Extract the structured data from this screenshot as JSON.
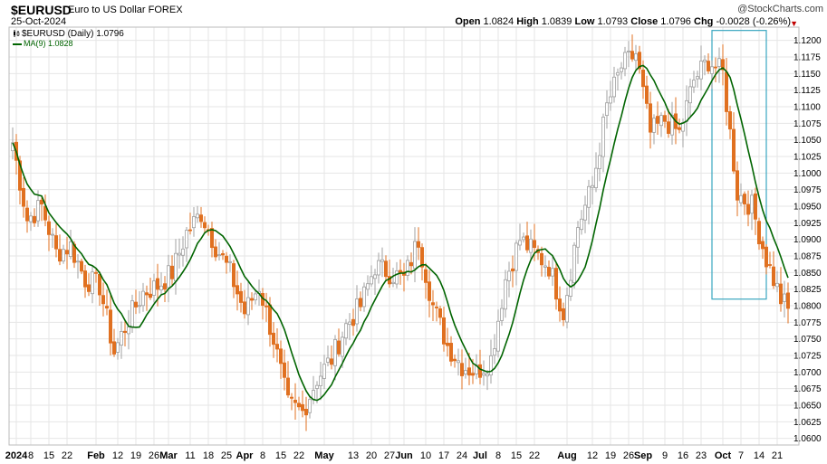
{
  "header": {
    "symbol": "$EURUSD",
    "description": "Euro to US Dollar FOREX",
    "date": "25-Oct-2024",
    "brand": "@StockCharts.com",
    "open_label": "Open",
    "open": "1.0824",
    "high_label": "High",
    "high": "1.0839",
    "low_label": "Low",
    "low": "1.0793",
    "close_label": "Close",
    "close": "1.0796",
    "chg_label": "Chg",
    "chg": "-0.0028 (-0.26%)"
  },
  "legend": {
    "price_label": "$EURUSD (Daily) 1.0796",
    "ma_label": "MA(9) 1.0828"
  },
  "colors": {
    "up": "#a0a0a0",
    "down": "#e07020",
    "ma": "#006400",
    "grid": "#e6e6e6",
    "highlight": "#3aa6c0"
  },
  "chart_data": {
    "type": "candlestick",
    "ylim": [
      1.059,
      1.122
    ],
    "y_ticks": [
      "1.0600",
      "1.0625",
      "1.0650",
      "1.0675",
      "1.0700",
      "1.0725",
      "1.0750",
      "1.0775",
      "1.0800",
      "1.0825",
      "1.0850",
      "1.0875",
      "1.0900",
      "1.0925",
      "1.0950",
      "1.0975",
      "1.1000",
      "1.1025",
      "1.1050",
      "1.1075",
      "1.1100",
      "1.1125",
      "1.1150",
      "1.1175",
      "1.1200"
    ],
    "x_ticks": [
      {
        "label": "2024",
        "bold": true,
        "i": 1
      },
      {
        "label": "8",
        "i": 5
      },
      {
        "label": "15",
        "i": 10
      },
      {
        "label": "22",
        "i": 15
      },
      {
        "label": "Feb",
        "bold": true,
        "i": 23
      },
      {
        "label": "12",
        "i": 29
      },
      {
        "label": "19",
        "i": 34
      },
      {
        "label": "26",
        "i": 39
      },
      {
        "label": "Mar",
        "bold": true,
        "i": 43
      },
      {
        "label": "11",
        "i": 49
      },
      {
        "label": "18",
        "i": 54
      },
      {
        "label": "25",
        "i": 59
      },
      {
        "label": "Apr",
        "bold": true,
        "i": 64
      },
      {
        "label": "8",
        "i": 69
      },
      {
        "label": "15",
        "i": 74
      },
      {
        "label": "22",
        "i": 79
      },
      {
        "label": "May",
        "bold": true,
        "i": 86
      },
      {
        "label": "13",
        "i": 94
      },
      {
        "label": "20",
        "i": 99
      },
      {
        "label": "27",
        "i": 104
      },
      {
        "label": "Jun",
        "bold": true,
        "i": 108
      },
      {
        "label": "10",
        "i": 114
      },
      {
        "label": "17",
        "i": 119
      },
      {
        "label": "24",
        "i": 124
      },
      {
        "label": "Jul",
        "bold": true,
        "i": 129
      },
      {
        "label": "8",
        "i": 134
      },
      {
        "label": "15",
        "i": 139
      },
      {
        "label": "22",
        "i": 144
      },
      {
        "label": "Aug",
        "bold": true,
        "i": 153
      },
      {
        "label": "12",
        "i": 160
      },
      {
        "label": "19",
        "i": 165
      },
      {
        "label": "26",
        "i": 170
      },
      {
        "label": "Sep",
        "bold": true,
        "i": 174
      },
      {
        "label": "9",
        "i": 180
      },
      {
        "label": "16",
        "i": 185
      },
      {
        "label": "23",
        "i": 190
      },
      {
        "label": "Oct",
        "bold": true,
        "i": 196
      },
      {
        "label": "7",
        "i": 201
      },
      {
        "label": "14",
        "i": 206
      },
      {
        "label": "21",
        "i": 211
      }
    ],
    "close_anchors": [
      [
        0,
        1.1046
      ],
      [
        4,
        1.093
      ],
      [
        8,
        1.095
      ],
      [
        12,
        1.088
      ],
      [
        16,
        1.089
      ],
      [
        20,
        1.084
      ],
      [
        24,
        1.083
      ],
      [
        28,
        1.073
      ],
      [
        32,
        1.078
      ],
      [
        36,
        1.082
      ],
      [
        40,
        1.083
      ],
      [
        44,
        1.085
      ],
      [
        48,
        1.091
      ],
      [
        52,
        1.094
      ],
      [
        56,
        1.089
      ],
      [
        60,
        1.085
      ],
      [
        64,
        1.079
      ],
      [
        68,
        1.083
      ],
      [
        72,
        1.075
      ],
      [
        76,
        1.065
      ],
      [
        80,
        1.064
      ],
      [
        84,
        1.069
      ],
      [
        88,
        1.072
      ],
      [
        92,
        1.077
      ],
      [
        96,
        1.08
      ],
      [
        100,
        1.086
      ],
      [
        104,
        1.085
      ],
      [
        108,
        1.084
      ],
      [
        112,
        1.09
      ],
      [
        116,
        1.08
      ],
      [
        120,
        1.074
      ],
      [
        124,
        1.071
      ],
      [
        128,
        1.07
      ],
      [
        132,
        1.072
      ],
      [
        136,
        1.084
      ],
      [
        140,
        1.09
      ],
      [
        144,
        1.088
      ],
      [
        148,
        1.086
      ],
      [
        152,
        1.079
      ],
      [
        156,
        1.092
      ],
      [
        160,
        1.098
      ],
      [
        164,
        1.11
      ],
      [
        168,
        1.116
      ],
      [
        172,
        1.118
      ],
      [
        176,
        1.106
      ],
      [
        180,
        1.108
      ],
      [
        184,
        1.106
      ],
      [
        188,
        1.114
      ],
      [
        192,
        1.117
      ],
      [
        196,
        1.115
      ],
      [
        200,
        1.097
      ],
      [
        204,
        1.095
      ],
      [
        208,
        1.087
      ],
      [
        212,
        1.081
      ],
      [
        214,
        1.0796
      ]
    ],
    "ma": {
      "period": 9,
      "last": 1.0828
    },
    "highlight_box": {
      "i_start": 193,
      "i_end": 208,
      "y_top": 1.1215,
      "y_bottom": 1.081
    }
  }
}
